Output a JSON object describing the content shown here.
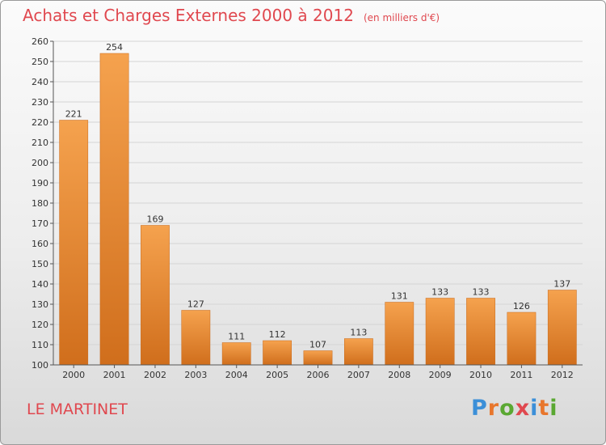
{
  "header": {
    "title": "Achats et Charges Externes 2000 à 2012",
    "subtitle": "(en milliers d'€)"
  },
  "location": "LE MARTINET",
  "logo": {
    "text": "Proxiti",
    "letter_colors": [
      "#3b8fd8",
      "#e8762c",
      "#5aa832",
      "#e0484f",
      "#3b8fd8",
      "#e8762c",
      "#5aa832"
    ]
  },
  "colors": {
    "bar_top": "#f5a24e",
    "bar_bottom": "#d06e1c",
    "title": "#e0484f",
    "grid": "#d4d4d4",
    "axis": "#555555"
  },
  "chart_data": {
    "type": "bar",
    "categories": [
      "2000",
      "2001",
      "2002",
      "2003",
      "2004",
      "2005",
      "2006",
      "2007",
      "2008",
      "2009",
      "2010",
      "2011",
      "2012"
    ],
    "values": [
      221,
      254,
      169,
      127,
      111,
      112,
      107,
      113,
      131,
      133,
      133,
      126,
      137
    ],
    "ylim": [
      100,
      260
    ],
    "ytick_step": 10,
    "grid": true,
    "legend": "none"
  }
}
